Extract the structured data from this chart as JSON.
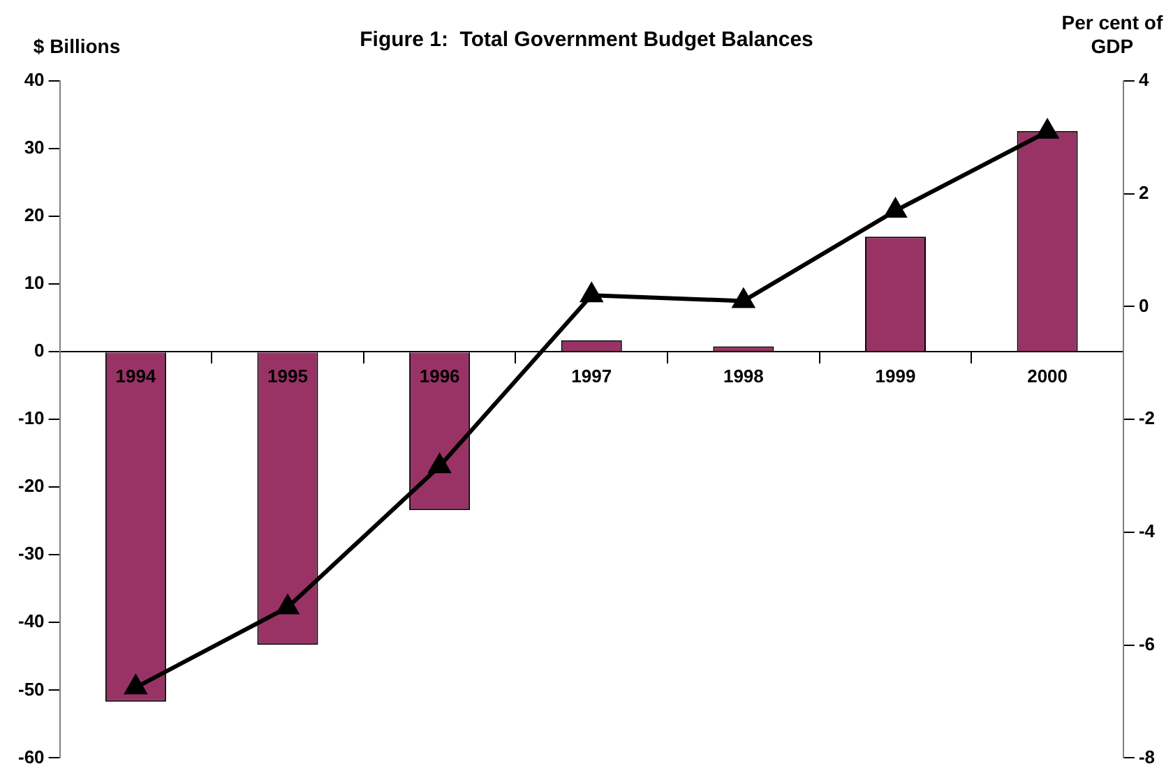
{
  "chart_data": {
    "type": "bar",
    "title": "Figure 1:  Total Government Budget Balances",
    "ylabel": "$ Billions",
    "y2label": "Per cent of GDP",
    "categories": [
      "1994",
      "1995",
      "1996",
      "1997",
      "1998",
      "1999",
      "2000"
    ],
    "series": [
      {
        "color": "#993366",
        "values": [
          -51.7,
          -43.3,
          -23.4,
          1.7,
          0.8,
          17.0,
          32.6
        ]
      },
      {
        "type": "line",
        "axis": "y2",
        "color": "#000000",
        "values": [
          -6.75,
          -5.33,
          -2.83,
          0.2,
          0.1,
          1.7,
          3.1
        ]
      }
    ],
    "marker": "triangle",
    "ylim": [
      -60,
      40
    ],
    "yticks": [
      -60,
      -50,
      -40,
      -30,
      -20,
      -10,
      0,
      10,
      20,
      30,
      40
    ],
    "y2lim": [
      -8,
      4
    ],
    "y2ticks": [
      -8,
      -6,
      -4,
      -2,
      0,
      2,
      4
    ]
  }
}
